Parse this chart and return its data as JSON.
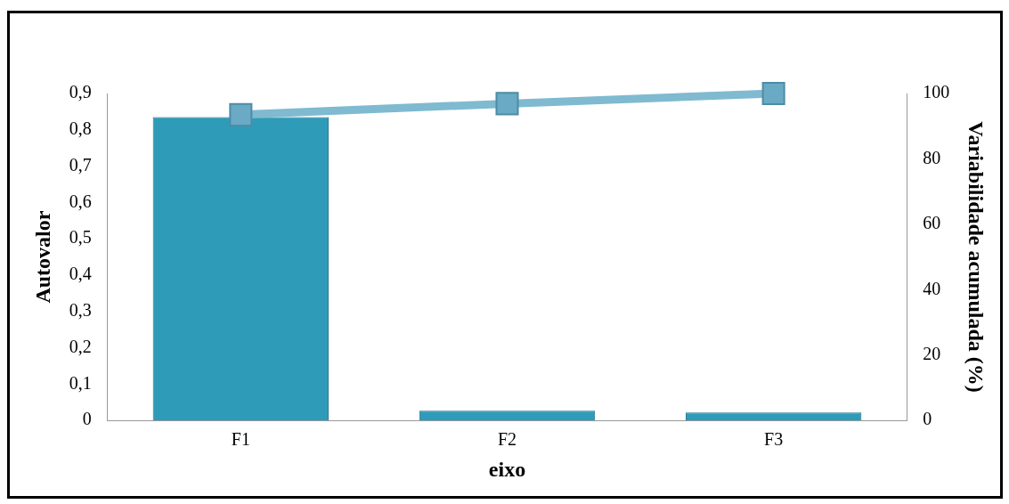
{
  "chart_data": {
    "type": "bar",
    "xlabel": "eixo",
    "ylabel": "Autovalor",
    "y2label": "Variabilidade acumulada (%)",
    "categories": [
      "F1",
      "F2",
      "F3"
    ],
    "series": [
      {
        "color": "#2e9bb9",
        "values": [
          0.835,
          0.027,
          0.022
        ]
      },
      {
        "type": "line",
        "axis": "y2",
        "color": "#7fbad0",
        "marker": "square",
        "values": [
          93.5,
          96.9,
          100
        ]
      }
    ],
    "ylim": [
      0,
      0.9
    ],
    "yticks": [
      {
        "value": 0,
        "label": "0"
      },
      {
        "value": 0.1,
        "label": "0,1"
      },
      {
        "value": 0.2,
        "label": "0,2"
      },
      {
        "value": 0.3,
        "label": "0,3"
      },
      {
        "value": 0.4,
        "label": "0,4"
      },
      {
        "value": 0.5,
        "label": "0,5"
      },
      {
        "value": 0.6,
        "label": "0,6"
      },
      {
        "value": 0.7,
        "label": "0,7"
      },
      {
        "value": 0.8,
        "label": "0,8"
      },
      {
        "value": 0.9,
        "label": "0,9"
      }
    ],
    "y2lim": [
      0,
      100
    ],
    "y2ticks": [
      0,
      20,
      40,
      60,
      80,
      100
    ],
    "grid": false,
    "legend": false
  }
}
